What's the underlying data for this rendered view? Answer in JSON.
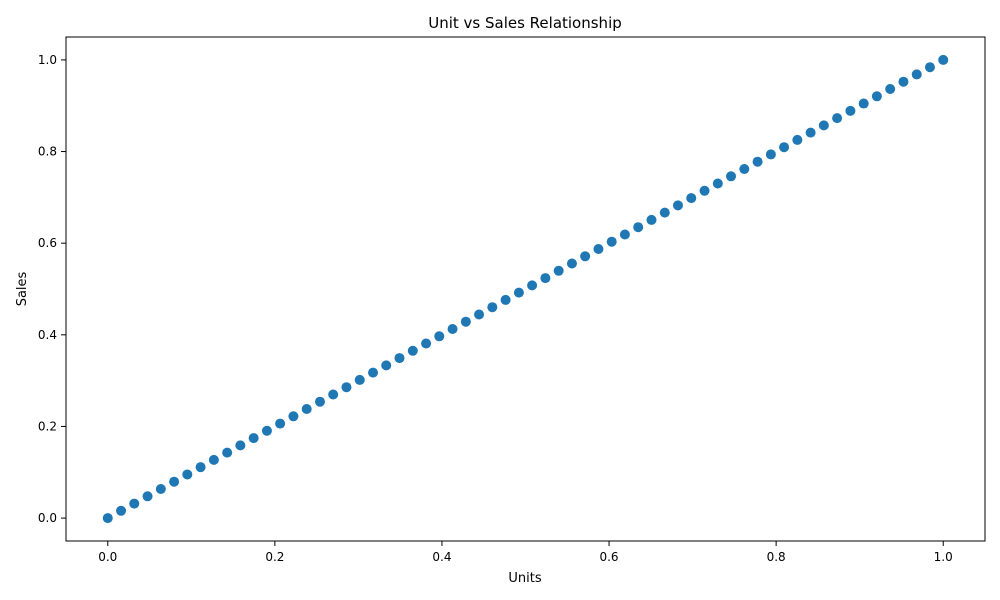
{
  "chart_data": {
    "type": "scatter",
    "title": "Unit vs Sales Relationship",
    "xlabel": "Units",
    "ylabel": "Sales",
    "xlim": [
      -0.05,
      1.05
    ],
    "ylim": [
      -0.05,
      1.05
    ],
    "xticks": [
      "0.0",
      "0.2",
      "0.4",
      "0.6",
      "0.8",
      "1.0"
    ],
    "xtick_values": [
      0.0,
      0.2,
      0.4,
      0.6,
      0.8,
      1.0
    ],
    "yticks": [
      "0.0",
      "0.2",
      "0.4",
      "0.6",
      "0.8",
      "1.0"
    ],
    "ytick_values": [
      0.0,
      0.2,
      0.4,
      0.6,
      0.8,
      1.0
    ],
    "grid": false,
    "legend": "none",
    "marker_color": "#1f77b4",
    "series": [
      {
        "x": [
          0.0,
          0.0159,
          0.0317,
          0.0476,
          0.0635,
          0.0794,
          0.0952,
          0.1111,
          0.127,
          0.1429,
          0.1587,
          0.1746,
          0.1905,
          0.2063,
          0.2222,
          0.2381,
          0.254,
          0.2698,
          0.2857,
          0.3016,
          0.3175,
          0.3333,
          0.3492,
          0.3651,
          0.381,
          0.3968,
          0.4127,
          0.4286,
          0.4444,
          0.4603,
          0.4762,
          0.4921,
          0.5079,
          0.5238,
          0.5397,
          0.5556,
          0.5714,
          0.5873,
          0.6032,
          0.619,
          0.6349,
          0.6508,
          0.6667,
          0.6825,
          0.6984,
          0.7143,
          0.7302,
          0.746,
          0.7619,
          0.7778,
          0.7937,
          0.8095,
          0.8254,
          0.8413,
          0.8571,
          0.873,
          0.8889,
          0.9048,
          0.9206,
          0.9365,
          0.9524,
          0.9683,
          0.9841,
          1.0
        ],
        "y": [
          0.0,
          0.0159,
          0.0317,
          0.0476,
          0.0635,
          0.0794,
          0.0952,
          0.1111,
          0.127,
          0.1429,
          0.1587,
          0.1746,
          0.1905,
          0.2063,
          0.2222,
          0.2381,
          0.254,
          0.2698,
          0.2857,
          0.3016,
          0.3175,
          0.3333,
          0.3492,
          0.3651,
          0.381,
          0.3968,
          0.4127,
          0.4286,
          0.4444,
          0.4603,
          0.4762,
          0.4921,
          0.5079,
          0.5238,
          0.5397,
          0.5556,
          0.5714,
          0.5873,
          0.6032,
          0.619,
          0.6349,
          0.6508,
          0.6667,
          0.6825,
          0.6984,
          0.7143,
          0.7302,
          0.746,
          0.7619,
          0.7778,
          0.7937,
          0.8095,
          0.8254,
          0.8413,
          0.8571,
          0.873,
          0.8889,
          0.9048,
          0.9206,
          0.9365,
          0.9524,
          0.9683,
          0.9841,
          1.0
        ]
      }
    ]
  }
}
